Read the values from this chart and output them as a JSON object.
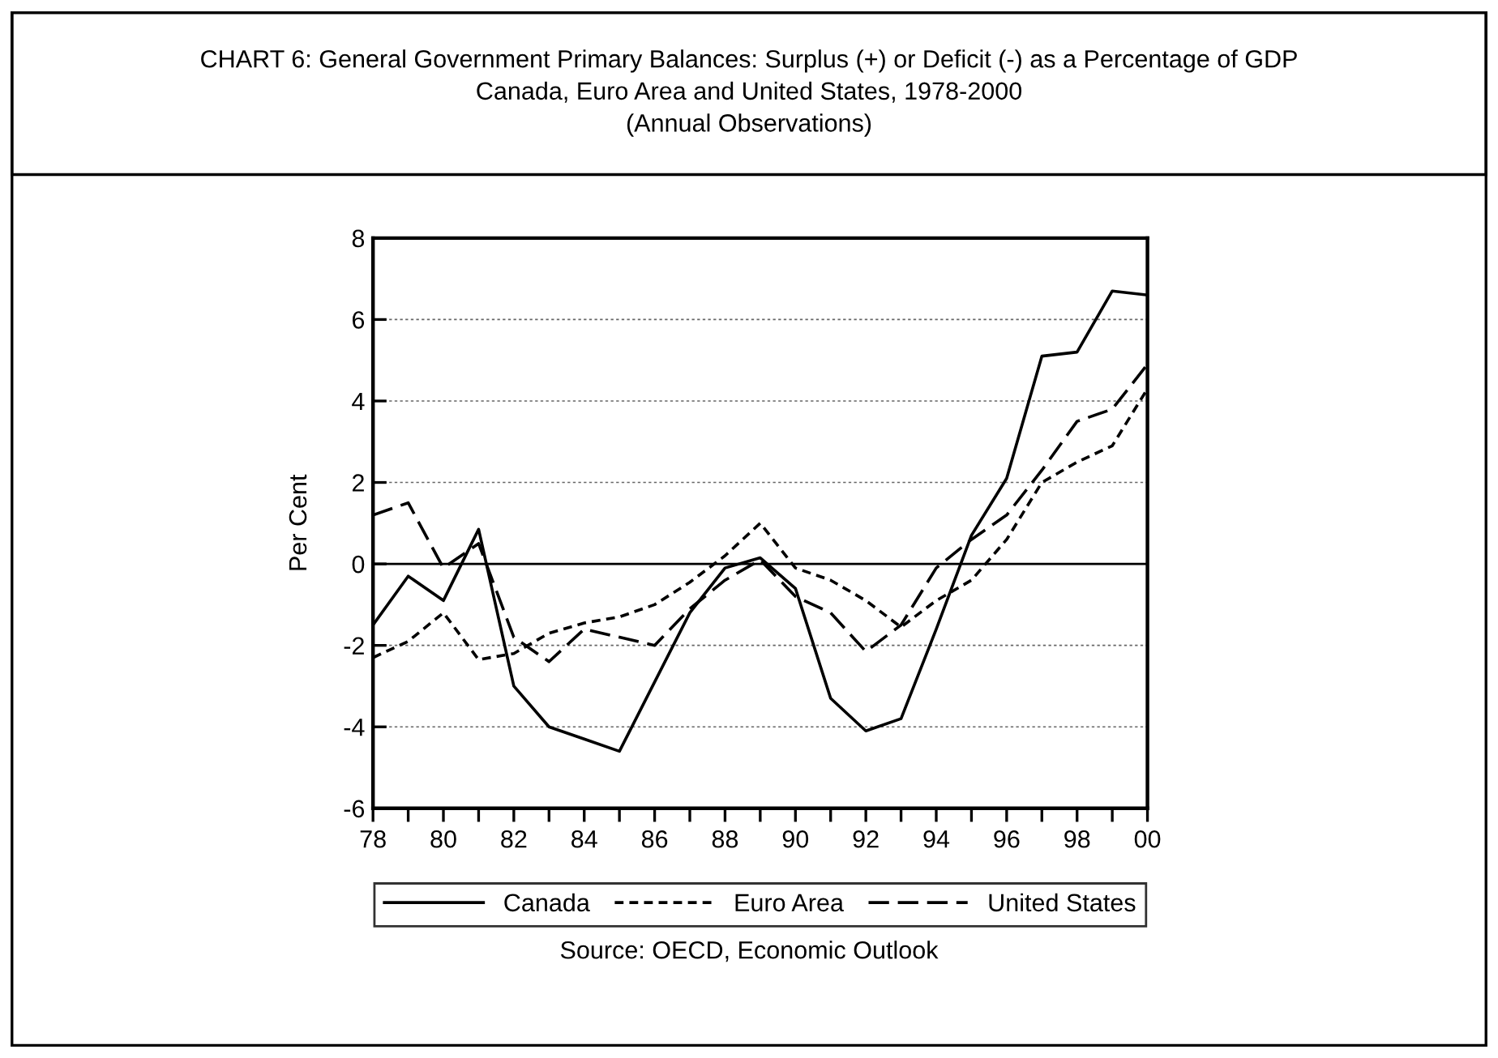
{
  "chart_data": {
    "type": "line",
    "title": "CHART 6: General Government Primary Balances: Surplus (+) or Deficit (-) as a Percentage of GDP\nCanada, Euro Area and United States, 1978-2000\n(Annual Observations)",
    "ylabel": "Per Cent",
    "x": [
      1978,
      1979,
      1980,
      1981,
      1982,
      1983,
      1984,
      1985,
      1986,
      1987,
      1988,
      1989,
      1990,
      1991,
      1992,
      1993,
      1994,
      1995,
      1996,
      1997,
      1998,
      1999,
      2000
    ],
    "series": [
      {
        "name": "Canada",
        "color": "#000000",
        "line_style": "solid",
        "values": [
          -1.5,
          -0.3,
          -0.9,
          0.85,
          -3.0,
          -4.0,
          -4.3,
          -4.6,
          -2.9,
          -1.2,
          -0.1,
          0.15,
          -0.6,
          -3.3,
          -4.1,
          -3.8,
          -1.6,
          0.7,
          2.1,
          5.1,
          5.2,
          6.7,
          6.6
        ]
      },
      {
        "name": "Euro Area",
        "color": "#000000",
        "line_style": "dotted",
        "values": [
          -2.3,
          -1.9,
          -1.2,
          -2.35,
          -2.2,
          -1.7,
          -1.45,
          -1.3,
          -1.0,
          -0.45,
          0.2,
          1.0,
          -0.1,
          -0.4,
          -0.9,
          -1.55,
          -0.9,
          -0.4,
          0.6,
          2.0,
          2.5,
          2.9,
          4.3
        ]
      },
      {
        "name": "United States",
        "color": "#000000",
        "line_style": "dashed",
        "values": [
          1.2,
          1.5,
          -0.1,
          0.5,
          -1.8,
          -2.4,
          -1.6,
          -1.8,
          -2.0,
          -1.1,
          -0.4,
          0.1,
          -0.8,
          -1.2,
          -2.15,
          -1.5,
          -0.1,
          0.6,
          1.2,
          2.3,
          3.5,
          3.8,
          4.9
        ]
      }
    ],
    "xlim": [
      1978,
      2000
    ],
    "xticks": [
      {
        "value": 1978,
        "label": "78"
      },
      {
        "value": 1979,
        "label": null
      },
      {
        "value": 1980,
        "label": "80"
      },
      {
        "value": 1981,
        "label": null
      },
      {
        "value": 1982,
        "label": "82"
      },
      {
        "value": 1983,
        "label": null
      },
      {
        "value": 1984,
        "label": "84"
      },
      {
        "value": 1985,
        "label": null
      },
      {
        "value": 1986,
        "label": "86"
      },
      {
        "value": 1987,
        "label": null
      },
      {
        "value": 1988,
        "label": "88"
      },
      {
        "value": 1989,
        "label": null
      },
      {
        "value": 1990,
        "label": "90"
      },
      {
        "value": 1991,
        "label": null
      },
      {
        "value": 1992,
        "label": "92"
      },
      {
        "value": 1993,
        "label": null
      },
      {
        "value": 1994,
        "label": "94"
      },
      {
        "value": 1995,
        "label": null
      },
      {
        "value": 1996,
        "label": "96"
      },
      {
        "value": 1997,
        "label": null
      },
      {
        "value": 1998,
        "label": "98"
      },
      {
        "value": 1999,
        "label": null
      },
      {
        "value": 2000,
        "label": "00"
      }
    ],
    "ylim": [
      -6,
      8
    ],
    "yticks": [
      -6,
      -4,
      -2,
      0,
      2,
      4,
      6,
      8
    ],
    "ref_lines": [
      {
        "axis": "y",
        "value": 0,
        "color": "#000000",
        "line_style": "solid"
      }
    ],
    "grid": "y",
    "legend": "bottom",
    "marker": "none",
    "annotations": [
      "Source: OECD, Economic Outlook"
    ]
  }
}
